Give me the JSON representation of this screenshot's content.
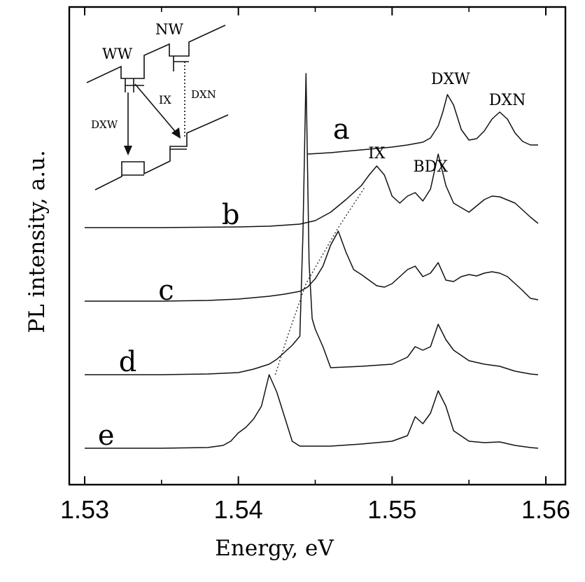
{
  "chart_data": {
    "type": "line",
    "title": "",
    "xlabel": "Energy, eV",
    "ylabel": "PL intensity, a.u.",
    "xlim": [
      1.53,
      1.56
    ],
    "x_ticks": [
      "1.53",
      "1.54",
      "1.55",
      "1.56"
    ],
    "y_units": "arbitrary (each trace offset vertically)",
    "series": [
      {
        "name": "a",
        "offset": 4.2,
        "x": [
          1.5445,
          1.546,
          1.548,
          1.55,
          1.551,
          1.552,
          1.5525,
          1.553,
          1.5533,
          1.5536,
          1.554,
          1.5545,
          1.555,
          1.5555,
          1.556,
          1.5565,
          1.557,
          1.5575,
          1.558,
          1.5585,
          1.559,
          1.5595
        ],
        "y": [
          0.0,
          0.02,
          0.06,
          0.1,
          0.13,
          0.17,
          0.23,
          0.4,
          0.6,
          0.85,
          0.7,
          0.35,
          0.2,
          0.22,
          0.33,
          0.5,
          0.6,
          0.5,
          0.3,
          0.18,
          0.13,
          0.13
        ]
      },
      {
        "name": "b",
        "offset": 3.15,
        "x": [
          1.53,
          1.535,
          1.54,
          1.542,
          1.544,
          1.545,
          1.546,
          1.547,
          1.548,
          1.5485,
          1.549,
          1.5495,
          1.55,
          1.5505,
          1.551,
          1.5515,
          1.552,
          1.5525,
          1.553,
          1.5535,
          1.554,
          1.555,
          1.556,
          1.5565,
          1.557,
          1.558,
          1.559,
          1.5595
        ],
        "y": [
          0.0,
          0.0,
          0.01,
          0.02,
          0.05,
          0.1,
          0.22,
          0.4,
          0.6,
          0.75,
          0.88,
          0.75,
          0.45,
          0.35,
          0.45,
          0.5,
          0.38,
          0.55,
          1.05,
          0.6,
          0.35,
          0.22,
          0.4,
          0.45,
          0.44,
          0.35,
          0.15,
          0.06
        ]
      },
      {
        "name": "c",
        "offset": 2.1,
        "x": [
          1.53,
          1.535,
          1.538,
          1.54,
          1.542,
          1.543,
          1.544,
          1.5445,
          1.545,
          1.5455,
          1.546,
          1.5465,
          1.547,
          1.5475,
          1.548,
          1.5485,
          1.549,
          1.5495,
          1.55,
          1.5505,
          1.551,
          1.5515,
          1.552,
          1.5525,
          1.553,
          1.5535,
          1.554,
          1.5545,
          1.555,
          1.5555,
          1.556,
          1.5565,
          1.557,
          1.5575,
          1.558,
          1.5585,
          1.559,
          1.5595
        ],
        "y": [
          0.0,
          0.0,
          0.01,
          0.03,
          0.07,
          0.1,
          0.14,
          0.2,
          0.32,
          0.5,
          0.8,
          1.0,
          0.7,
          0.45,
          0.38,
          0.3,
          0.22,
          0.2,
          0.25,
          0.35,
          0.45,
          0.5,
          0.35,
          0.4,
          0.55,
          0.3,
          0.28,
          0.35,
          0.38,
          0.36,
          0.4,
          0.42,
          0.4,
          0.35,
          0.25,
          0.15,
          0.04,
          0.02
        ]
      },
      {
        "name": "d",
        "offset": 1.05,
        "x": [
          1.53,
          1.535,
          1.538,
          1.54,
          1.541,
          1.542,
          1.5425,
          1.543,
          1.5435,
          1.544,
          1.5442,
          1.5444,
          1.5446,
          1.5448,
          1.545,
          1.5455,
          1.546,
          1.548,
          1.55,
          1.551,
          1.5515,
          1.552,
          1.5525,
          1.553,
          1.5535,
          1.554,
          1.555,
          1.556,
          1.557,
          1.558,
          1.559,
          1.5595
        ],
        "y": [
          0.0,
          0.0,
          0.01,
          0.03,
          0.08,
          0.15,
          0.22,
          0.32,
          0.42,
          0.55,
          2.0,
          4.3,
          1.6,
          0.8,
          0.65,
          0.4,
          0.1,
          0.12,
          0.15,
          0.25,
          0.4,
          0.35,
          0.4,
          0.72,
          0.5,
          0.35,
          0.2,
          0.15,
          0.12,
          0.05,
          0.01,
          0.0
        ]
      },
      {
        "name": "e",
        "offset": 0.0,
        "x": [
          1.53,
          1.535,
          1.538,
          1.539,
          1.5395,
          1.54,
          1.5405,
          1.541,
          1.5415,
          1.542,
          1.5425,
          1.543,
          1.5435,
          1.544,
          1.546,
          1.548,
          1.55,
          1.551,
          1.5515,
          1.552,
          1.5525,
          1.553,
          1.5535,
          1.554,
          1.555,
          1.556,
          1.557,
          1.558,
          1.559,
          1.5595
        ],
        "y": [
          0.0,
          0.0,
          0.01,
          0.04,
          0.1,
          0.22,
          0.3,
          0.42,
          0.6,
          1.05,
          0.8,
          0.45,
          0.1,
          0.03,
          0.03,
          0.06,
          0.1,
          0.18,
          0.45,
          0.35,
          0.5,
          0.82,
          0.6,
          0.25,
          0.1,
          0.08,
          0.09,
          0.04,
          0.01,
          0.0
        ]
      }
    ],
    "trend_line": {
      "label": "dotted line through IX peaks",
      "x": [
        1.5424,
        1.5432,
        1.5444,
        1.5465,
        1.5482
      ],
      "y": [
        1.05,
        1.6,
        2.35,
        3.15,
        3.72
      ]
    },
    "peak_labels": [
      {
        "text": "DXW",
        "x": 1.5538,
        "y": 5.2
      },
      {
        "text": "DXN",
        "x": 1.5575,
        "y": 4.9
      },
      {
        "text": "IX",
        "x": 1.549,
        "y": 4.14
      },
      {
        "text": "BDX",
        "x": 1.5525,
        "y": 3.95
      }
    ],
    "curve_labels": [
      {
        "text": "a",
        "x": 1.5467,
        "y": 4.42
      },
      {
        "text": "b",
        "x": 1.5395,
        "y": 3.2
      },
      {
        "text": "c",
        "x": 1.5353,
        "y": 2.12
      },
      {
        "text": "d",
        "x": 1.5328,
        "y": 1.1
      },
      {
        "text": "e",
        "x": 1.5314,
        "y": 0.05
      }
    ],
    "inset": {
      "description": "band diagram of double quantum well",
      "labels": {
        "ww": "WW",
        "nw": "NW",
        "ix": "IX",
        "dxw": "DXW",
        "dxn": "DXN"
      }
    }
  }
}
